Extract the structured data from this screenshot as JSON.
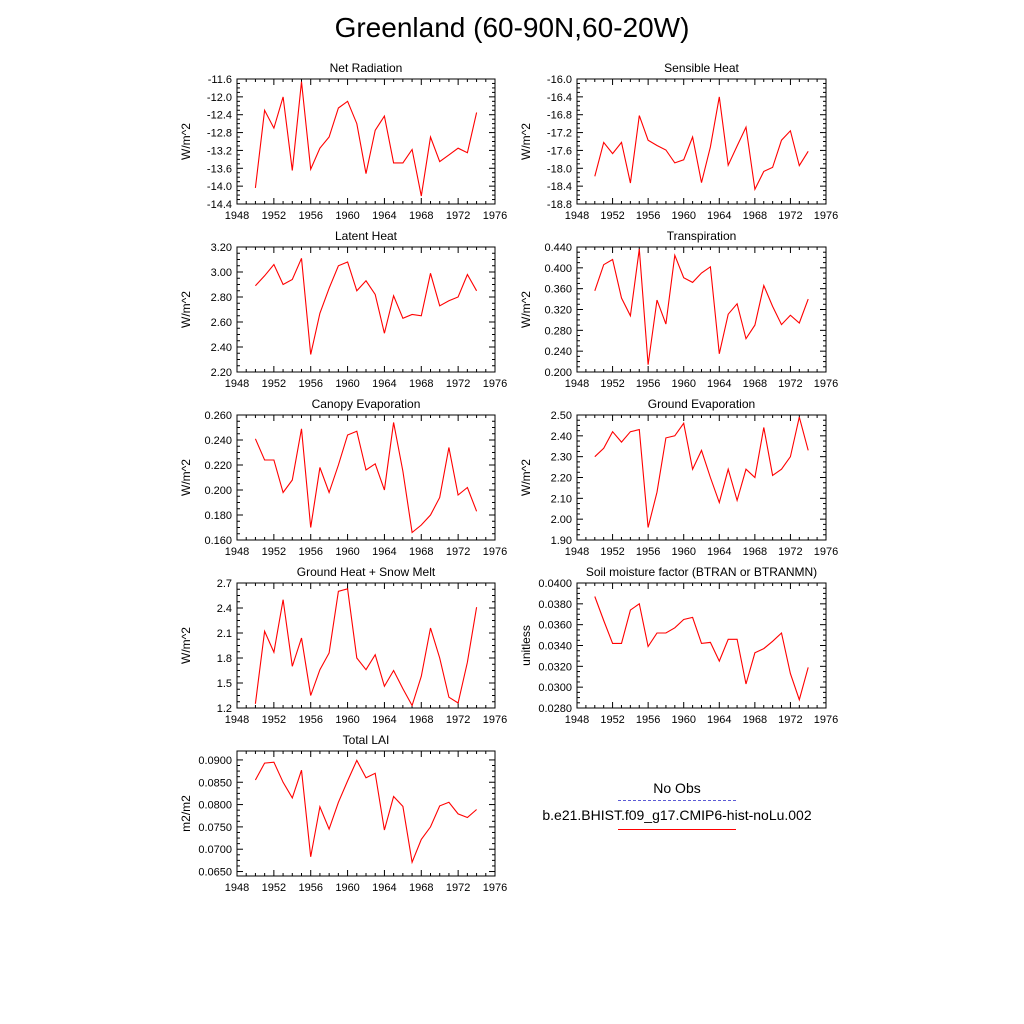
{
  "page_title": "Greenland (60-90N,60-20W)",
  "legend": {
    "obs_label": "No Obs",
    "obs_color": "#5b5bd6",
    "model_label": "b.e21.BHIST.f09_g17.CMIP6-hist-noLu.002",
    "model_color": "#ff0000"
  },
  "chart_data": [
    {
      "type": "line",
      "title": "Net Radiation",
      "ylabel": "W/m^2",
      "xlim": [
        1948,
        1976
      ],
      "ylim": [
        -14.4,
        -11.6
      ],
      "xticks": [
        "1948",
        "1952",
        "1956",
        "1960",
        "1964",
        "1968",
        "1972",
        "1976"
      ],
      "yticks": [
        "-14.4",
        "-14.0",
        "-13.6",
        "-13.2",
        "-12.8",
        "-12.4",
        "-12.0",
        "-11.6"
      ],
      "x": [
        1950,
        1951,
        1952,
        1953,
        1954,
        1955,
        1956,
        1957,
        1958,
        1959,
        1960,
        1961,
        1962,
        1963,
        1964,
        1965,
        1966,
        1967,
        1968,
        1969,
        1970,
        1971,
        1972,
        1973,
        1974
      ],
      "y": [
        -14.04,
        -12.3,
        -12.7,
        -12.0,
        -13.65,
        -11.66,
        -13.62,
        -13.15,
        -12.9,
        -12.25,
        -12.1,
        -12.6,
        -13.72,
        -12.75,
        -12.43,
        -13.48,
        -13.48,
        -13.18,
        -14.22,
        -12.9,
        -13.45,
        -13.3,
        -13.15,
        -13.25,
        -12.35
      ]
    },
    {
      "type": "line",
      "title": "Sensible Heat",
      "ylabel": "W/m^2",
      "xlim": [
        1948,
        1976
      ],
      "ylim": [
        -18.8,
        -16.0
      ],
      "xticks": [
        "1948",
        "1952",
        "1956",
        "1960",
        "1964",
        "1968",
        "1972",
        "1976"
      ],
      "yticks": [
        "-18.8",
        "-18.4",
        "-18.0",
        "-17.6",
        "-17.2",
        "-16.8",
        "-16.4",
        "-16.0"
      ],
      "x": [
        1950,
        1951,
        1952,
        1953,
        1954,
        1955,
        1956,
        1957,
        1958,
        1959,
        1960,
        1961,
        1962,
        1963,
        1964,
        1965,
        1966,
        1967,
        1968,
        1969,
        1970,
        1971,
        1972,
        1973,
        1974
      ],
      "y": [
        -18.18,
        -17.42,
        -17.67,
        -17.42,
        -18.33,
        -16.82,
        -17.37,
        -17.49,
        -17.59,
        -17.88,
        -17.81,
        -17.3,
        -18.32,
        -17.52,
        -16.4,
        -17.93,
        -17.5,
        -17.08,
        -18.47,
        -18.07,
        -17.98,
        -17.37,
        -17.16,
        -17.94,
        -17.62
      ]
    },
    {
      "type": "line",
      "title": "Latent Heat",
      "ylabel": "W/m^2",
      "xlim": [
        1948,
        1976
      ],
      "ylim": [
        2.2,
        3.2
      ],
      "xticks": [
        "1948",
        "1952",
        "1956",
        "1960",
        "1964",
        "1968",
        "1972",
        "1976"
      ],
      "yticks": [
        "2.20",
        "2.40",
        "2.60",
        "2.80",
        "3.00",
        "3.20"
      ],
      "x": [
        1950,
        1951,
        1952,
        1953,
        1954,
        1955,
        1956,
        1957,
        1958,
        1959,
        1960,
        1961,
        1962,
        1963,
        1964,
        1965,
        1966,
        1967,
        1968,
        1969,
        1970,
        1971,
        1972,
        1973,
        1974
      ],
      "y": [
        2.89,
        2.97,
        3.06,
        2.9,
        2.94,
        3.11,
        2.34,
        2.67,
        2.87,
        3.05,
        3.08,
        2.85,
        2.93,
        2.82,
        2.51,
        2.81,
        2.63,
        2.66,
        2.65,
        2.99,
        2.73,
        2.77,
        2.8,
        2.98,
        2.85
      ]
    },
    {
      "type": "line",
      "title": "Transpiration",
      "ylabel": "W/m^2",
      "xlim": [
        1948,
        1976
      ],
      "ylim": [
        0.2,
        0.44
      ],
      "xticks": [
        "1948",
        "1952",
        "1956",
        "1960",
        "1964",
        "1968",
        "1972",
        "1976"
      ],
      "yticks": [
        "0.200",
        "0.240",
        "0.280",
        "0.320",
        "0.360",
        "0.400",
        "0.440"
      ],
      "x": [
        1950,
        1951,
        1952,
        1953,
        1954,
        1955,
        1956,
        1957,
        1958,
        1959,
        1960,
        1961,
        1962,
        1963,
        1964,
        1965,
        1966,
        1967,
        1968,
        1969,
        1970,
        1971,
        1972,
        1973,
        1974
      ],
      "y": [
        0.356,
        0.406,
        0.416,
        0.342,
        0.308,
        0.436,
        0.214,
        0.338,
        0.292,
        0.424,
        0.381,
        0.372,
        0.39,
        0.402,
        0.235,
        0.311,
        0.331,
        0.264,
        0.29,
        0.366,
        0.326,
        0.291,
        0.309,
        0.294,
        0.34
      ]
    },
    {
      "type": "line",
      "title": "Canopy Evaporation",
      "ylabel": "W/m^2",
      "xlim": [
        1948,
        1976
      ],
      "ylim": [
        0.16,
        0.26
      ],
      "xticks": [
        "1948",
        "1952",
        "1956",
        "1960",
        "1964",
        "1968",
        "1972",
        "1976"
      ],
      "yticks": [
        "0.160",
        "0.180",
        "0.200",
        "0.220",
        "0.240",
        "0.260"
      ],
      "x": [
        1950,
        1951,
        1952,
        1953,
        1954,
        1955,
        1956,
        1957,
        1958,
        1959,
        1960,
        1961,
        1962,
        1963,
        1964,
        1965,
        1966,
        1967,
        1968,
        1969,
        1970,
        1971,
        1972,
        1973,
        1974
      ],
      "y": [
        0.241,
        0.224,
        0.224,
        0.198,
        0.208,
        0.249,
        0.17,
        0.218,
        0.198,
        0.22,
        0.244,
        0.247,
        0.216,
        0.221,
        0.2,
        0.254,
        0.215,
        0.166,
        0.172,
        0.18,
        0.194,
        0.234,
        0.196,
        0.202,
        0.183
      ]
    },
    {
      "type": "line",
      "title": "Ground Evaporation",
      "ylabel": "W/m^2",
      "xlim": [
        1948,
        1976
      ],
      "ylim": [
        1.9,
        2.5
      ],
      "xticks": [
        "1948",
        "1952",
        "1956",
        "1960",
        "1964",
        "1968",
        "1972",
        "1976"
      ],
      "yticks": [
        "1.90",
        "2.00",
        "2.10",
        "2.20",
        "2.30",
        "2.40",
        "2.50"
      ],
      "x": [
        1950,
        1951,
        1952,
        1953,
        1954,
        1955,
        1956,
        1957,
        1958,
        1959,
        1960,
        1961,
        1962,
        1963,
        1964,
        1965,
        1966,
        1967,
        1968,
        1969,
        1970,
        1971,
        1972,
        1973,
        1974
      ],
      "y": [
        2.3,
        2.34,
        2.42,
        2.37,
        2.42,
        2.43,
        1.96,
        2.13,
        2.39,
        2.4,
        2.46,
        2.24,
        2.33,
        2.2,
        2.08,
        2.24,
        2.09,
        2.24,
        2.2,
        2.44,
        2.21,
        2.24,
        2.3,
        2.49,
        2.33
      ]
    },
    {
      "type": "line",
      "title": "Ground Heat + Snow Melt",
      "ylabel": "W/m^2",
      "xlim": [
        1948,
        1976
      ],
      "ylim": [
        1.2,
        2.7
      ],
      "xticks": [
        "1948",
        "1952",
        "1956",
        "1960",
        "1964",
        "1968",
        "1972",
        "1976"
      ],
      "yticks": [
        "1.2",
        "1.5",
        "1.8",
        "2.1",
        "2.4",
        "2.7"
      ],
      "x": [
        1950,
        1951,
        1952,
        1953,
        1954,
        1955,
        1956,
        1957,
        1958,
        1959,
        1960,
        1961,
        1962,
        1963,
        1964,
        1965,
        1966,
        1967,
        1968,
        1969,
        1970,
        1971,
        1972,
        1973,
        1974
      ],
      "y": [
        1.25,
        2.12,
        1.87,
        2.5,
        1.7,
        2.04,
        1.35,
        1.66,
        1.86,
        2.6,
        2.63,
        1.8,
        1.66,
        1.84,
        1.46,
        1.65,
        1.43,
        1.23,
        1.58,
        2.16,
        1.8,
        1.33,
        1.26,
        1.75,
        2.41
      ]
    },
    {
      "type": "line",
      "title": "Soil moisture factor (BTRAN or BTRANMN)",
      "ylabel": "unitless",
      "xlim": [
        1948,
        1976
      ],
      "ylim": [
        0.028,
        0.04
      ],
      "xticks": [
        "1948",
        "1952",
        "1956",
        "1960",
        "1964",
        "1968",
        "1972",
        "1976"
      ],
      "yticks": [
        "0.0280",
        "0.0300",
        "0.0320",
        "0.0340",
        "0.0360",
        "0.0380",
        "0.0400"
      ],
      "x": [
        1950,
        1951,
        1952,
        1953,
        1954,
        1955,
        1956,
        1957,
        1958,
        1959,
        1960,
        1961,
        1962,
        1963,
        1964,
        1965,
        1966,
        1967,
        1968,
        1969,
        1970,
        1971,
        1972,
        1973,
        1974
      ],
      "y": [
        0.0387,
        0.0364,
        0.0342,
        0.0342,
        0.0374,
        0.038,
        0.0339,
        0.0352,
        0.0352,
        0.0357,
        0.0365,
        0.0367,
        0.0342,
        0.0343,
        0.0325,
        0.0346,
        0.0346,
        0.0303,
        0.0333,
        0.0337,
        0.0344,
        0.0352,
        0.0313,
        0.0288,
        0.0319
      ]
    },
    {
      "type": "line",
      "title": "Total LAI",
      "ylabel": "m2/m2",
      "xlim": [
        1948,
        1976
      ],
      "ylim": [
        0.064,
        0.092
      ],
      "xticks": [
        "1948",
        "1952",
        "1956",
        "1960",
        "1964",
        "1968",
        "1972",
        "1976"
      ],
      "yticks": [
        "0.0650",
        "0.0700",
        "0.0750",
        "0.0800",
        "0.0850",
        "0.0900"
      ],
      "x": [
        1950,
        1951,
        1952,
        1953,
        1954,
        1955,
        1956,
        1957,
        1958,
        1959,
        1960,
        1961,
        1962,
        1963,
        1964,
        1965,
        1966,
        1967,
        1968,
        1969,
        1970,
        1971,
        1972,
        1973,
        1974
      ],
      "y": [
        0.0855,
        0.0893,
        0.0895,
        0.085,
        0.0815,
        0.0877,
        0.0683,
        0.0795,
        0.0745,
        0.0805,
        0.0853,
        0.0899,
        0.086,
        0.087,
        0.0743,
        0.0818,
        0.0796,
        0.0671,
        0.0722,
        0.075,
        0.0797,
        0.0805,
        0.0779,
        0.0771,
        0.0789
      ]
    }
  ]
}
